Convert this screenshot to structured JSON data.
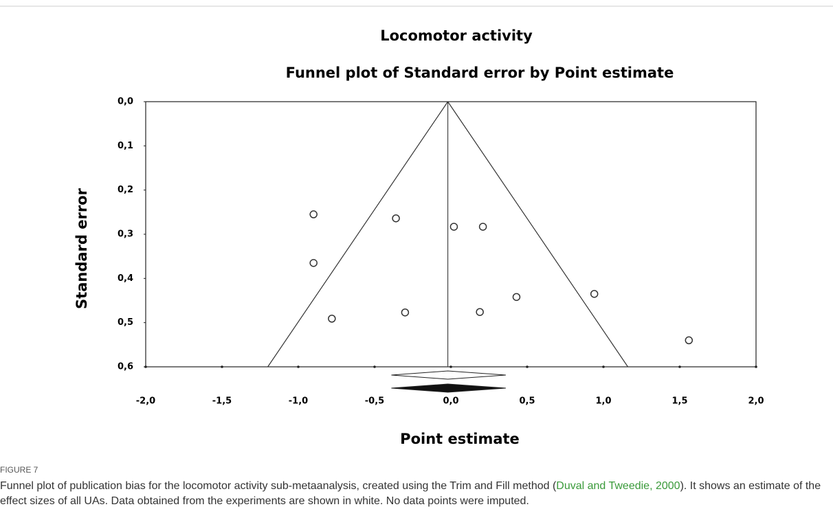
{
  "chart_data": {
    "type": "scatter",
    "title": "Locomotor activity",
    "subtitle": "Funnel plot of Standard error by Point estimate",
    "x_label": "Point estimate",
    "y_label": "Standard error",
    "x": [
      -0.9,
      -0.36,
      0.02,
      0.21,
      -0.9,
      -0.78,
      -0.3,
      0.19,
      0.43,
      0.94,
      1.56
    ],
    "values": [
      0.255,
      0.264,
      0.283,
      0.283,
      0.365,
      0.491,
      0.477,
      0.476,
      0.442,
      0.435,
      0.54
    ],
    "xlim": [
      -2,
      2
    ],
    "ylim": [
      0,
      0.6
    ],
    "y_reversed": true,
    "xticks": [
      {
        "value": -2,
        "label": "-2,0"
      },
      {
        "value": -1.5,
        "label": "-1,5"
      },
      {
        "value": -1,
        "label": "-1,0"
      },
      {
        "value": -0.5,
        "label": "-0,5"
      },
      {
        "value": 0,
        "label": "0,0"
      },
      {
        "value": 0.5,
        "label": "0,5"
      },
      {
        "value": 1,
        "label": "1,0"
      },
      {
        "value": 1.5,
        "label": "1,5"
      },
      {
        "value": 2,
        "label": "2,0"
      }
    ],
    "yticks": [
      {
        "value": 0,
        "label": "0,0"
      },
      {
        "value": 0.1,
        "label": "0,1"
      },
      {
        "value": 0.2,
        "label": "0,2"
      },
      {
        "value": 0.3,
        "label": "0,3"
      },
      {
        "value": 0.4,
        "label": "0,4"
      },
      {
        "value": 0.5,
        "label": "0,5"
      },
      {
        "value": 0.6,
        "label": "0,6"
      }
    ],
    "funnel": {
      "apex": -0.02,
      "left": -1.2,
      "right": 1.16
    },
    "summary_observed": {
      "estimate": -0.02,
      "lower": -0.39,
      "upper": 0.36
    },
    "summary_adjusted": {
      "estimate": -0.02,
      "lower": -0.39,
      "upper": 0.36
    }
  },
  "caption": {
    "label": "FIGURE 7",
    "text_before": "Funnel plot of publication bias for the locomotor activity sub-metaanalysis, created using the Trim and Fill method (",
    "link": "Duval and Tweedie, 2000",
    "text_after": "). It shows an estimate of the effect sizes of all UAs. Data obtained from the experiments are shown in white. No data points were imputed."
  }
}
